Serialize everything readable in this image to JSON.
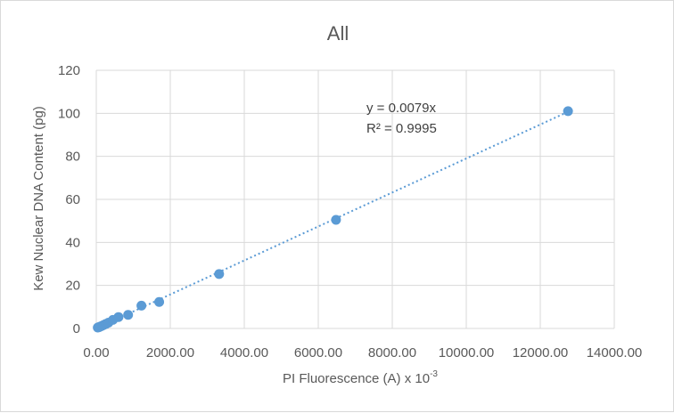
{
  "chart_data": {
    "type": "scatter",
    "title": "All",
    "xlabel": "PI Fluorescence (A) x 10",
    "xlabel_superscript": "-3",
    "ylabel": "Kew Nuclear DNA Content (pg)",
    "xlim": [
      0,
      14000
    ],
    "ylim": [
      0,
      120
    ],
    "x_ticks": [
      "0.00",
      "2000.00",
      "4000.00",
      "6000.00",
      "8000.00",
      "10000.00",
      "12000.00",
      "14000.00"
    ],
    "y_ticks": [
      "0",
      "20",
      "40",
      "60",
      "80",
      "100",
      "120"
    ],
    "grid": true,
    "series": [
      {
        "color": "#5b9bd5",
        "points": [
          {
            "x": 40,
            "y": 0.4
          },
          {
            "x": 70,
            "y": 0.6
          },
          {
            "x": 110,
            "y": 0.9
          },
          {
            "x": 150,
            "y": 1.2
          },
          {
            "x": 200,
            "y": 1.6
          },
          {
            "x": 260,
            "y": 2.1
          },
          {
            "x": 330,
            "y": 2.7
          },
          {
            "x": 450,
            "y": 4.0
          },
          {
            "x": 600,
            "y": 5.3
          },
          {
            "x": 860,
            "y": 6.3
          },
          {
            "x": 1220,
            "y": 10.6
          },
          {
            "x": 1700,
            "y": 12.3
          },
          {
            "x": 3320,
            "y": 25.3
          },
          {
            "x": 6480,
            "y": 50.5
          },
          {
            "x": 12750,
            "y": 101.0
          }
        ]
      }
    ],
    "trendline": {
      "type": "linear",
      "slope": 0.0079,
      "intercept": 0,
      "style": "dotted",
      "x_range": [
        0,
        12750
      ],
      "equation": "y = 0.0079x",
      "r_squared": "R² = 0.9995"
    }
  }
}
